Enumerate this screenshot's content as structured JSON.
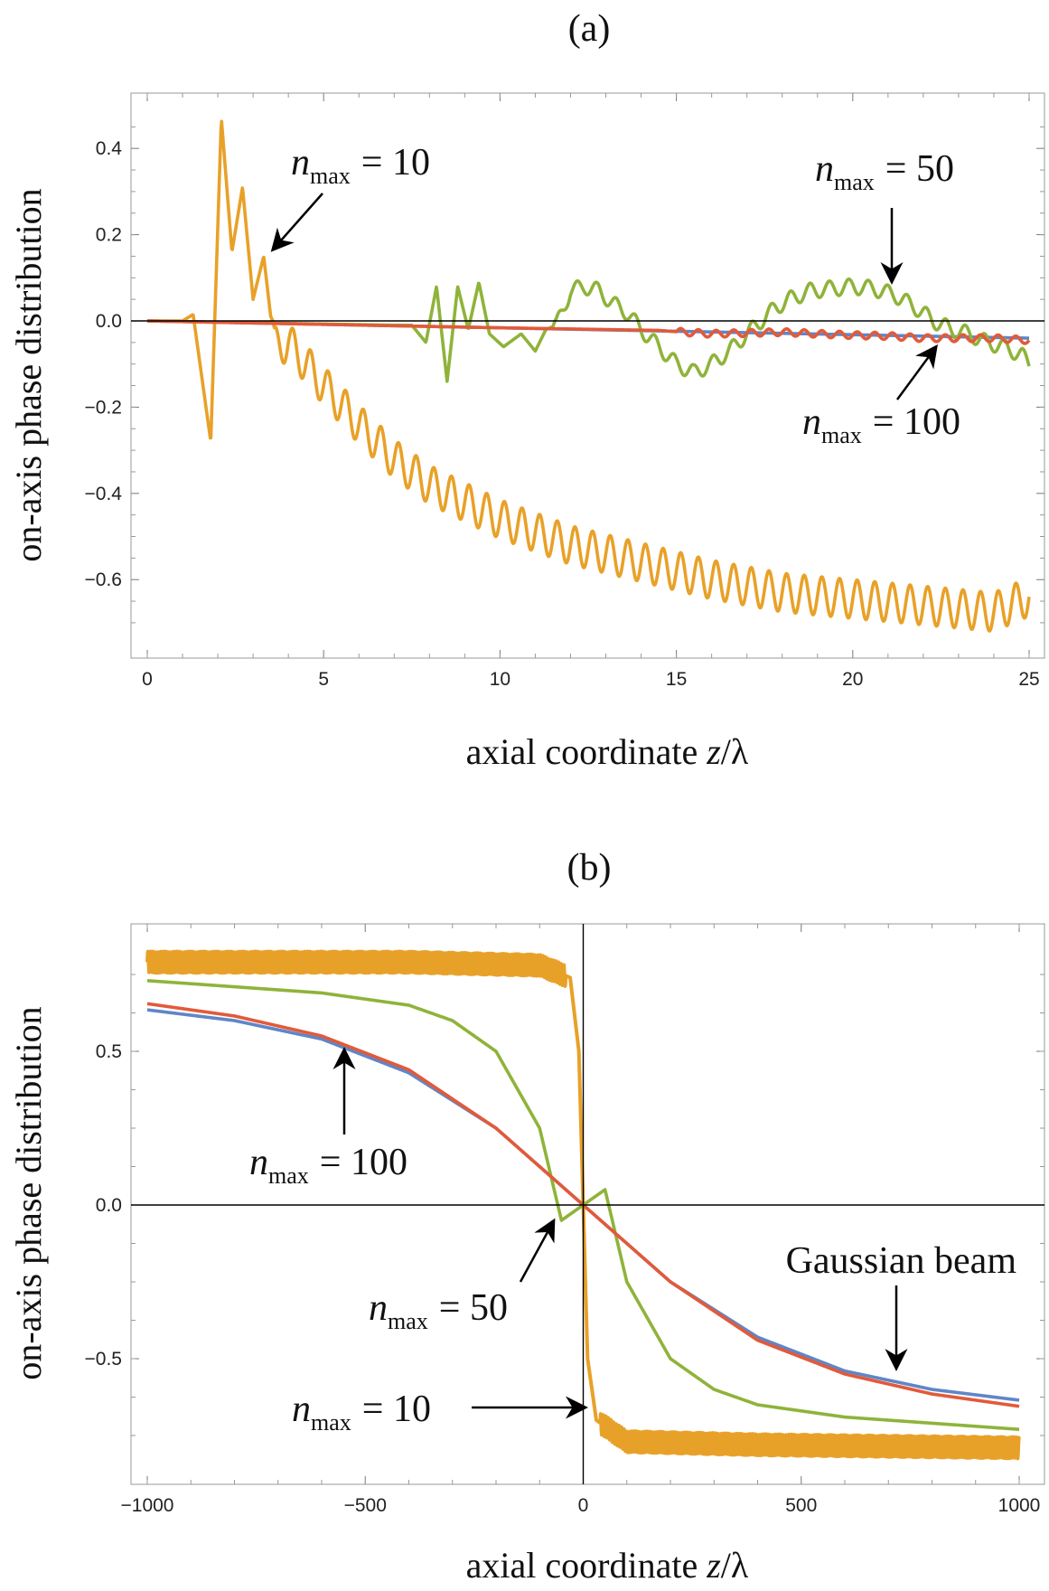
{
  "colors": {
    "blue": "#5f86c8",
    "orange": "#e8a128",
    "green": "#8fb33a",
    "red": "#e25a3a",
    "axis": "#000000",
    "frame": "#999999"
  },
  "chart_data": [
    {
      "panel_label": "(a)",
      "type": "line",
      "xlabel": "axial coordinate z/λ",
      "xlabel_parts": {
        "main": "axial coordinate ",
        "var": "z",
        "rest": "/λ"
      },
      "ylabel": "on-axis phase distribution",
      "xlim": [
        0,
        25
      ],
      "ylim": [
        -0.72,
        0.5
      ],
      "xticks": [
        0,
        5,
        10,
        15,
        20,
        25
      ],
      "xtick_labels": [
        "0",
        "5",
        "10",
        "15",
        "20",
        "25"
      ],
      "yticks": [
        0.4,
        0.2,
        0.0,
        -0.2,
        -0.4,
        -0.6
      ],
      "ytick_labels": [
        "0.4",
        "0.2",
        "0.0",
        "-0.2",
        "-0.4",
        "-0.6"
      ],
      "series": [
        {
          "name": "Gaussian beam",
          "color": "#5f86c8",
          "x": [
            0,
            5,
            10,
            15,
            20,
            25
          ],
          "y": [
            0,
            -0.008,
            -0.016,
            -0.024,
            -0.032,
            -0.04
          ]
        },
        {
          "name": "n_max = 10",
          "color": "#e8a128",
          "x": [
            0,
            1,
            1.3,
            1.8,
            2.1,
            2.4,
            2.7,
            3.0,
            3.3,
            3.6,
            4,
            5,
            6,
            7,
            8,
            10,
            12,
            14,
            16,
            18,
            20,
            22,
            24,
            25
          ],
          "y": [
            0,
            0,
            0.015,
            -0.28,
            0.47,
            0.16,
            0.31,
            0.05,
            0.15,
            -0.06,
            -0.05,
            -0.15,
            -0.24,
            -0.32,
            -0.38,
            -0.46,
            -0.52,
            -0.56,
            -0.6,
            -0.63,
            -0.645,
            -0.66,
            -0.675,
            -0.64
          ],
          "oscillation": {
            "start_x": 3.5,
            "amplitude": 0.045,
            "period": 0.5
          }
        },
        {
          "name": "n_max = 50",
          "color": "#8fb33a",
          "x": [
            0,
            7.0,
            7.5,
            7.9,
            8.2,
            8.5,
            8.8,
            9.1,
            9.4,
            9.7,
            10.1,
            10.6,
            11.0,
            11.3,
            11.6,
            12.0,
            12.4,
            12.8,
            13.2,
            13.6,
            14.0,
            14.5,
            15.0,
            15.5,
            16.0,
            16.5,
            17.0,
            17.4,
            17.8,
            18.2,
            18.8,
            19.4,
            20.0,
            20.6,
            21.2,
            21.8,
            22.3,
            22.8,
            23.3,
            23.8,
            24.3,
            24.8,
            25.0
          ],
          "y": [
            0,
            -0.01,
            -0.01,
            -0.05,
            0.08,
            -0.14,
            0.08,
            -0.02,
            0.09,
            -0.03,
            -0.06,
            -0.03,
            -0.07,
            -0.02,
            -0.01,
            0.07,
            0.08,
            0.07,
            0.04,
            0.02,
            -0.02,
            -0.06,
            -0.1,
            -0.12,
            -0.1,
            -0.07,
            -0.03,
            0.0,
            0.03,
            0.05,
            0.07,
            0.075,
            0.08,
            0.075,
            0.06,
            0.03,
            0.0,
            -0.02,
            -0.03,
            -0.05,
            -0.06,
            -0.08,
            -0.1
          ],
          "oscillation": {
            "start_x": 11.5,
            "amplitude": 0.018,
            "period": 0.55
          }
        },
        {
          "name": "n_max = 100",
          "color": "#e25a3a",
          "x": [
            0,
            5,
            10,
            14.5,
            15.0,
            16.0,
            17.0,
            18.0,
            19.0,
            20.0,
            21.0,
            22.0,
            23.0,
            24.0,
            25.0
          ],
          "y": [
            0,
            -0.008,
            -0.016,
            -0.022,
            -0.025,
            -0.03,
            -0.028,
            -0.026,
            -0.03,
            -0.033,
            -0.035,
            -0.04,
            -0.04,
            -0.04,
            -0.045
          ],
          "oscillation": {
            "start_x": 15,
            "amplitude": 0.008,
            "period": 0.5
          }
        }
      ],
      "annotations": [
        {
          "n": "n",
          "sub": "max",
          "value": "= 10",
          "points_to": [
            3.3,
            0.15
          ]
        },
        {
          "n": "n",
          "sub": "max",
          "value": "= 50",
          "points_to": [
            21.1,
            0.07
          ]
        },
        {
          "n": "n",
          "sub": "max",
          "value": "= 100",
          "points_to": [
            22.0,
            -0.045
          ]
        }
      ]
    },
    {
      "panel_label": "(b)",
      "type": "line",
      "xlabel": "axial coordinate z/λ",
      "xlabel_parts": {
        "main": "axial coordinate ",
        "var": "z",
        "rest": "/λ"
      },
      "ylabel": "on-axis phase distribution",
      "xlim": [
        -1000,
        1000
      ],
      "ylim": [
        -0.87,
        0.87
      ],
      "xticks": [
        -1000,
        -500,
        0,
        500,
        1000
      ],
      "xtick_labels": [
        "-1000",
        "-500",
        "0",
        "500",
        "1000"
      ],
      "yticks": [
        0.5,
        0.0,
        -0.5
      ],
      "ytick_labels": [
        "0.5",
        "0.0",
        "-0.5"
      ],
      "series": [
        {
          "name": "Gaussian beam",
          "color": "#5f86c8",
          "x": [
            -1000,
            -800,
            -600,
            -400,
            -200,
            0,
            200,
            400,
            600,
            800,
            1000
          ],
          "y": [
            0.635,
            0.6,
            0.54,
            0.43,
            0.25,
            0,
            -0.25,
            -0.43,
            -0.54,
            -0.6,
            -0.635
          ]
        },
        {
          "name": "n_max = 10",
          "color": "#e8a128",
          "x": [
            -1000,
            -400,
            -100,
            -30,
            -10,
            0,
            10,
            30,
            100,
            400,
            1000
          ],
          "y": [
            0.79,
            0.79,
            0.78,
            0.74,
            0.5,
            0,
            -0.5,
            -0.7,
            -0.77,
            -0.78,
            -0.79
          ],
          "oscillation": {
            "start_x": -1000,
            "amplitude": 0.035,
            "period": 6
          }
        },
        {
          "name": "n_max = 50",
          "color": "#8fb33a",
          "x": [
            -1000,
            -800,
            -600,
            -400,
            -300,
            -200,
            -100,
            -50,
            0,
            50,
            100,
            200,
            300,
            400,
            600,
            800,
            1000
          ],
          "y": [
            0.73,
            0.71,
            0.69,
            0.65,
            0.6,
            0.5,
            0.25,
            -0.05,
            0.0,
            0.05,
            -0.25,
            -0.5,
            -0.6,
            -0.65,
            -0.69,
            -0.71,
            -0.73
          ]
        },
        {
          "name": "n_max = 100",
          "color": "#e25a3a",
          "x": [
            -1000,
            -800,
            -600,
            -400,
            -200,
            0,
            200,
            400,
            600,
            800,
            1000
          ],
          "y": [
            0.655,
            0.615,
            0.55,
            0.44,
            0.25,
            0,
            -0.25,
            -0.44,
            -0.55,
            -0.615,
            -0.655
          ]
        }
      ],
      "annotations": [
        {
          "n": "n",
          "sub": "max",
          "value": "= 100",
          "points_to": [
            -530,
            0.55
          ]
        },
        {
          "n": "n",
          "sub": "max",
          "value": "= 50",
          "points_to": [
            -60,
            -0.04
          ]
        },
        {
          "n": "n",
          "sub": "max",
          "value": "= 10",
          "points_to": [
            15,
            -0.65
          ]
        },
        {
          "text": "Gaussian beam",
          "points_to": [
            720,
            -0.6
          ]
        }
      ]
    }
  ]
}
